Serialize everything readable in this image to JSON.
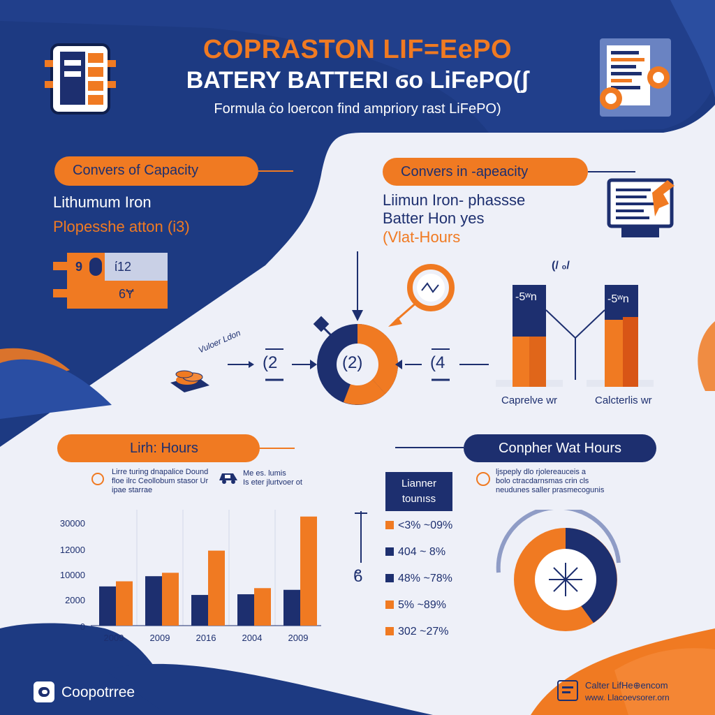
{
  "header": {
    "title_line1": "COPRASTON LIF=EePO",
    "title_line2": "BATERY BATTERI  ϭo LiFePO(ʃ",
    "subtitle": "Formula ċo loercon find ampriory rast LiFePO)"
  },
  "left_panel": {
    "pill_label": "Convers of Capacity",
    "line1": "Lithumum Iron",
    "line2": "Plopesshe atton  (i3)",
    "battery_top_left": "9",
    "battery_top_right": "ί12",
    "battery_bottom": "6Ɏ"
  },
  "right_panel": {
    "pill_label": "Convers in -apeacity",
    "line1": "Liimun Iron- phassse",
    "line2": "Batter Hon yes",
    "line3": "(Vlat-Hours"
  },
  "flow": {
    "handwritten": "Vuloer Ldon",
    "step_left": "(2",
    "step_center": "(2)",
    "step_right": "(4"
  },
  "mini_bars": {
    "top_marker": "(/ ₀/",
    "left_label": "-5ʷn",
    "right_label": "-5ʷn",
    "left_caption": "Caprelve wr",
    "right_caption": "Calcterlis wr"
  },
  "bottom_left": {
    "pill_label": "Lirh: Hours",
    "note_a": "Lirre turing dnapalice Dound\nfloe ilrc Ceollobum stasor Ur\nipae starrae",
    "note_b": "Me es. lumis\nIs eter jlurtvoer ot"
  },
  "chart_data": {
    "type": "bar",
    "categories": [
      "2009",
      "2009",
      "2016",
      "2004",
      "2009"
    ],
    "y_tick_labels": [
      "30000",
      "12000",
      "10000",
      "2000",
      "0"
    ],
    "series": [
      {
        "values": [
          1150,
          1450,
          900,
          920,
          1050
        ]
      },
      {
        "values": [
          1300,
          1550,
          2200,
          1100,
          3200
        ]
      }
    ],
    "ylim": [
      0,
      3400
    ],
    "grid": true,
    "colors": [
      "#1d2f6f",
      "#f07a22"
    ]
  },
  "bottom_right": {
    "pill_label": "Conpher Wat Hours",
    "note": "ljspeply dlo rjolereauceis a\nbolo ctracdarnsmas crin cls\nneudunes saller prasmecogunis",
    "legend_box_line1": "Lianner",
    "legend_box_line2": "tounıss",
    "axis_mark": "ϐ",
    "legend": [
      {
        "label": "<3% ~09%",
        "color": "#f07a22"
      },
      {
        "label": "404 ~ 8%",
        "color": "#1d2f6f"
      },
      {
        "label": "48% ~78%",
        "color": "#1d2f6f"
      },
      {
        "label": "5% ~89%",
        "color": "#f07a22"
      },
      {
        "label": "302 ~27%",
        "color": "#f07a22"
      }
    ]
  },
  "footer": {
    "brand": "Coopotrree",
    "right_line1": "Calter LifHe⊕encom",
    "right_line2": "www. Llacoevsorer.orn"
  },
  "icons": [
    "battery-icon",
    "document-icon",
    "monitor-icon",
    "coin-stack-icon",
    "logo-icon"
  ]
}
